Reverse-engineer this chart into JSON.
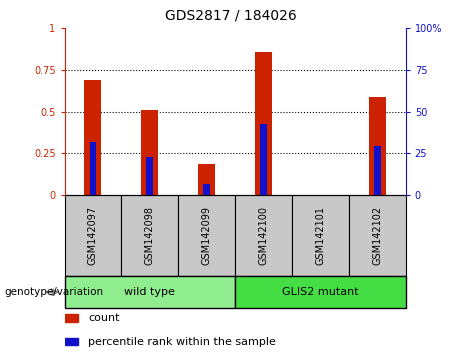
{
  "title": "GDS2817 / 184026",
  "samples": [
    "GSM142097",
    "GSM142098",
    "GSM142099",
    "GSM142100",
    "GSM142101",
    "GSM142102"
  ],
  "count_values": [
    0.69,
    0.51,
    0.185,
    0.855,
    0.0,
    0.585
  ],
  "percentile_values": [
    0.315,
    0.225,
    0.065,
    0.425,
    0.0,
    0.29
  ],
  "groups": [
    {
      "label": "wild type",
      "start": 0,
      "end": 3,
      "color": "#90EE90"
    },
    {
      "label": "GLIS2 mutant",
      "start": 3,
      "end": 6,
      "color": "#44DD44"
    }
  ],
  "group_label": "genotype/variation",
  "left_color": "#CC2200",
  "right_color": "#1111CC",
  "legend_items": [
    {
      "color": "#CC2200",
      "label": "count"
    },
    {
      "color": "#1111CC",
      "label": "percentile rank within the sample"
    }
  ],
  "ylim": [
    0,
    1
  ],
  "yticks": [
    0,
    0.25,
    0.5,
    0.75,
    1
  ],
  "ytick_labels_left": [
    "0",
    "0.25",
    "0.5",
    "0.75",
    "1"
  ],
  "ytick_labels_right": [
    "0",
    "25",
    "50",
    "75",
    "100%"
  ],
  "bar_width": 0.3,
  "blue_bar_width": 0.12,
  "bg_color": "#FFFFFF",
  "tick_area_color": "#C8C8C8",
  "title_fontsize": 10,
  "tick_fontsize": 7,
  "group_fontsize": 8,
  "legend_fontsize": 8
}
